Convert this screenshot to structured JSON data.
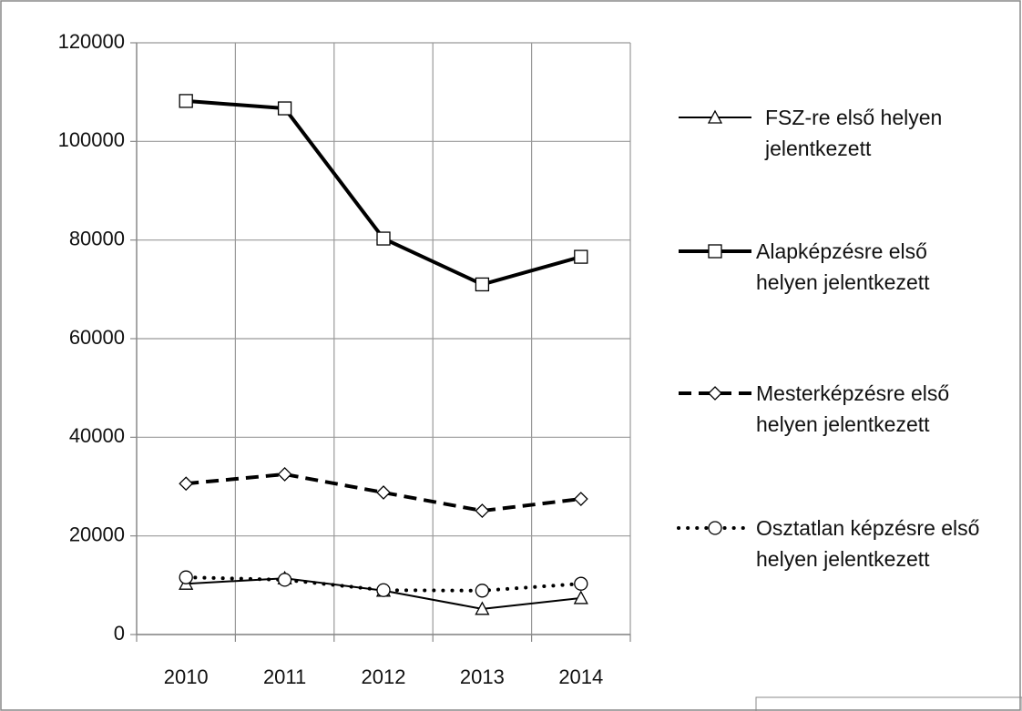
{
  "chart_data": {
    "type": "line",
    "categories": [
      "2010",
      "2011",
      "2012",
      "2013",
      "2014"
    ],
    "ylim": [
      0,
      120000
    ],
    "yticks": [
      0,
      20000,
      40000,
      60000,
      80000,
      100000,
      120000
    ],
    "grid": true,
    "series": [
      {
        "name": "FSZ-re első helyen jelentkezett",
        "color": "#000000",
        "marker": "triangle",
        "line_style": "solid",
        "line_width": 2,
        "values": [
          10300,
          11400,
          8900,
          5200,
          7400
        ]
      },
      {
        "name": "Alapképzésre első helyen jelentkezett",
        "color": "#000000",
        "marker": "square",
        "line_style": "solid",
        "line_width": 4,
        "values": [
          108200,
          106700,
          80300,
          71000,
          76600
        ]
      },
      {
        "name": "Mesterképzésre első helyen jelentkezett",
        "color": "#000000",
        "marker": "diamond",
        "line_style": "dashed",
        "line_width": 4,
        "values": [
          30600,
          32500,
          28800,
          25100,
          27500
        ]
      },
      {
        "name": "Osztatlan képzésre első helyen jelentkezett",
        "color": "#000000",
        "marker": "circle",
        "line_style": "dotted",
        "line_width": 4,
        "values": [
          11600,
          11100,
          9000,
          8900,
          10300
        ]
      }
    ]
  }
}
